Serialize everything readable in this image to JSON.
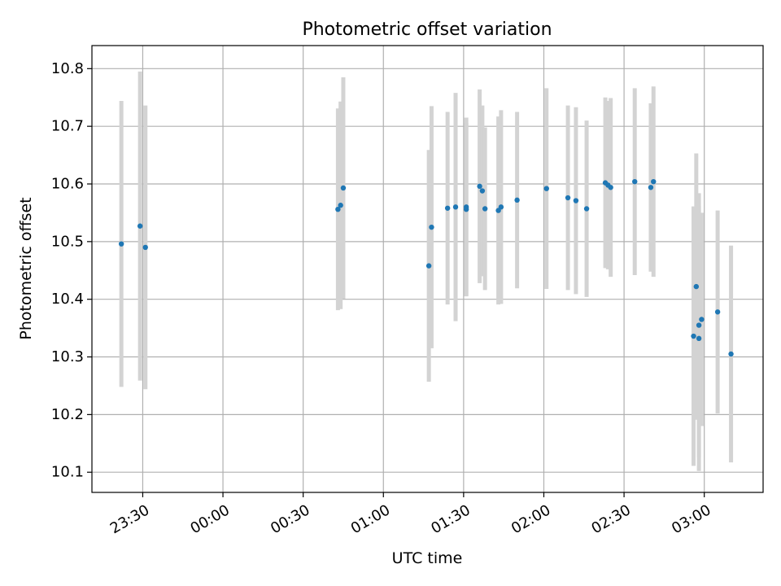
{
  "chart_data": {
    "type": "scatter",
    "title": "Photometric offset variation",
    "xlabel": "UTC time",
    "ylabel": "Photometric offset",
    "x_unit": "UTC clock time, spanning midnight",
    "xlim": [
      "23:11",
      "03:22"
    ],
    "ylim": [
      10.065,
      10.84
    ],
    "grid": true,
    "legend": "none",
    "colors": {
      "points": "#1f77b4",
      "error_bars": "#d3d3d3"
    },
    "x_ticks": [
      "23:30",
      "00:00",
      "00:30",
      "01:00",
      "01:30",
      "02:00",
      "02:30",
      "03:00"
    ],
    "y_ticks": [
      "10.1",
      "10.2",
      "10.3",
      "10.4",
      "10.5",
      "10.6",
      "10.7",
      "10.8"
    ],
    "points": [
      {
        "x": "23:22",
        "y": 10.496,
        "err": 0.248
      },
      {
        "x": "23:29",
        "y": 10.527,
        "err": 0.268
      },
      {
        "x": "23:31",
        "y": 10.49,
        "err": 0.246
      },
      {
        "x": "00:43",
        "y": 10.556,
        "err": 0.175
      },
      {
        "x": "00:44",
        "y": 10.563,
        "err": 0.18
      },
      {
        "x": "00:45",
        "y": 10.593,
        "err": 0.192
      },
      {
        "x": "01:17",
        "y": 10.458,
        "err": 0.201
      },
      {
        "x": "01:18",
        "y": 10.525,
        "err": 0.21
      },
      {
        "x": "01:24",
        "y": 10.558,
        "err": 0.167
      },
      {
        "x": "01:27",
        "y": 10.56,
        "err": 0.198
      },
      {
        "x": "01:31",
        "y": 10.556,
        "err": 0.15
      },
      {
        "x": "01:31",
        "y": 10.56,
        "err": 0.155
      },
      {
        "x": "01:36",
        "y": 10.596,
        "err": 0.168
      },
      {
        "x": "01:37",
        "y": 10.588,
        "err": 0.148
      },
      {
        "x": "01:38",
        "y": 10.557,
        "err": 0.141
      },
      {
        "x": "01:43",
        "y": 10.554,
        "err": 0.163
      },
      {
        "x": "01:44",
        "y": 10.56,
        "err": 0.168
      },
      {
        "x": "01:50",
        "y": 10.572,
        "err": 0.153
      },
      {
        "x": "02:01",
        "y": 10.592,
        "err": 0.174
      },
      {
        "x": "02:09",
        "y": 10.576,
        "err": 0.16
      },
      {
        "x": "02:12",
        "y": 10.571,
        "err": 0.162
      },
      {
        "x": "02:16",
        "y": 10.557,
        "err": 0.153
      },
      {
        "x": "02:23",
        "y": 10.602,
        "err": 0.148
      },
      {
        "x": "02:24",
        "y": 10.598,
        "err": 0.146
      },
      {
        "x": "02:25",
        "y": 10.594,
        "err": 0.155
      },
      {
        "x": "02:34",
        "y": 10.604,
        "err": 0.162
      },
      {
        "x": "02:40",
        "y": 10.594,
        "err": 0.146
      },
      {
        "x": "02:41",
        "y": 10.604,
        "err": 0.165
      },
      {
        "x": "02:56",
        "y": 10.336,
        "err": 0.225
      },
      {
        "x": "02:57",
        "y": 10.422,
        "err": 0.231
      },
      {
        "x": "02:58",
        "y": 10.332,
        "err": 0.23
      },
      {
        "x": "02:58",
        "y": 10.355,
        "err": 0.229
      },
      {
        "x": "02:59",
        "y": 10.365,
        "err": 0.185
      },
      {
        "x": "03:05",
        "y": 10.378,
        "err": 0.176
      },
      {
        "x": "03:10",
        "y": 10.305,
        "err": 0.188
      }
    ]
  }
}
